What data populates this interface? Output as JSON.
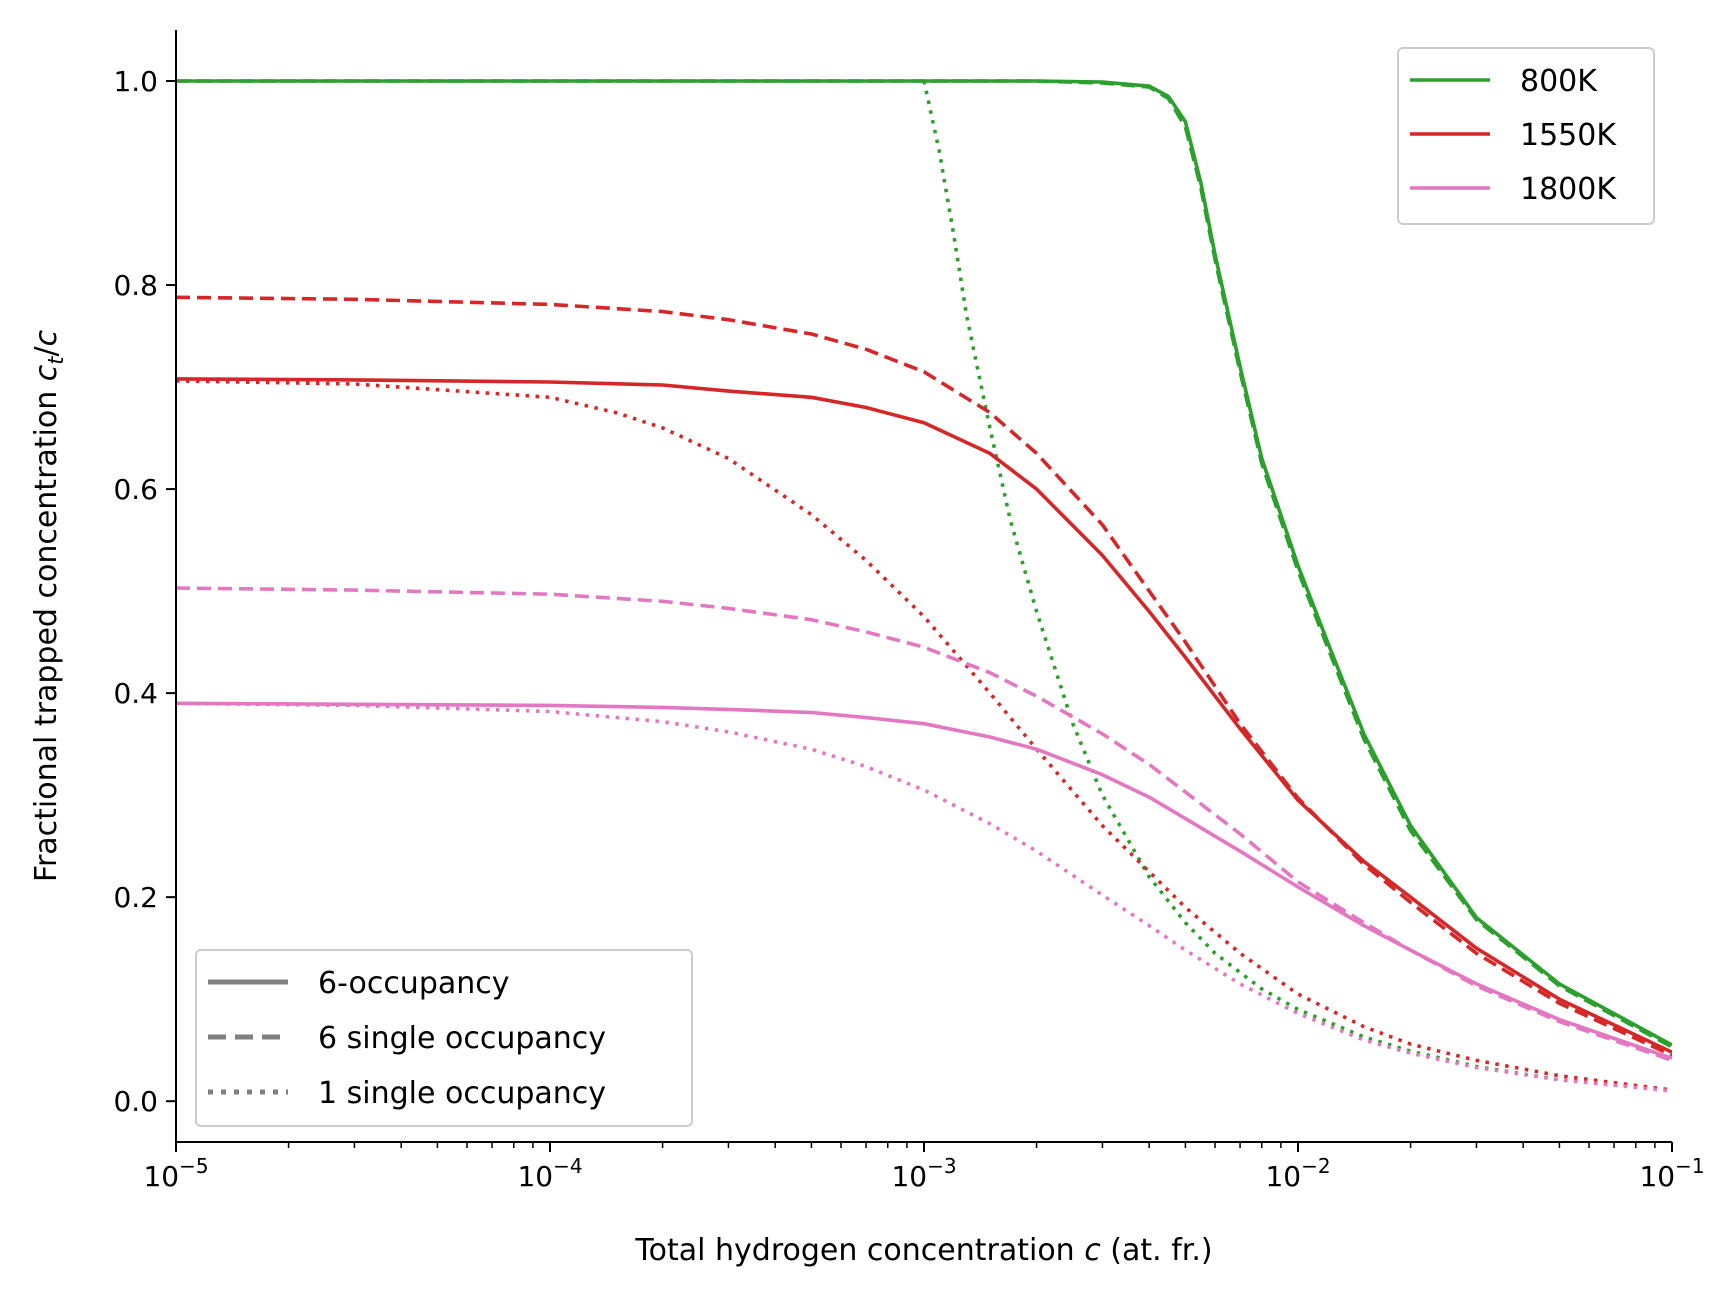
{
  "chart_data": {
    "type": "line",
    "x_scale": "log",
    "xlim": [
      1e-05,
      0.1
    ],
    "ylim": [
      -0.04,
      1.05
    ],
    "xlabel": {
      "prefix": "Total hydrogen concentration ",
      "var": "c",
      "suffix": " (at. fr.)"
    },
    "ylabel": {
      "prefix": "Fractional trapped concentration ",
      "var": "c",
      "sub": "t",
      "suffix": "/",
      "var2": "c"
    },
    "x_ticks": [
      {
        "value": 1e-05,
        "base": "10",
        "exp": "−5"
      },
      {
        "value": 0.0001,
        "base": "10",
        "exp": "−4"
      },
      {
        "value": 0.001,
        "base": "10",
        "exp": "−3"
      },
      {
        "value": 0.01,
        "base": "10",
        "exp": "−2"
      },
      {
        "value": 0.1,
        "base": "10",
        "exp": "−1"
      }
    ],
    "y_ticks": [
      {
        "value": 0.0,
        "label": "0.0"
      },
      {
        "value": 0.2,
        "label": "0.2"
      },
      {
        "value": 0.4,
        "label": "0.4"
      },
      {
        "value": 0.6,
        "label": "0.6"
      },
      {
        "value": 0.8,
        "label": "0.8"
      },
      {
        "value": 1.0,
        "label": "1.0"
      }
    ],
    "grid": false,
    "legend_temperature": {
      "position": "top-right",
      "entries": [
        {
          "label": "800K",
          "color": "#2ca02c"
        },
        {
          "label": "1550K",
          "color": "#d62728"
        },
        {
          "label": "1800K",
          "color": "#e377c2"
        }
      ]
    },
    "legend_style": {
      "position": "bottom-left",
      "color": "#808080",
      "entries": [
        {
          "label": "6-occupancy",
          "dash": "solid"
        },
        {
          "label": "6 single occupancy",
          "dash": "dashed"
        },
        {
          "label": "1 single occupancy",
          "dash": "dotted"
        }
      ]
    },
    "series": [
      {
        "name": "800K 6-occupancy",
        "color": "#2ca02c",
        "dash": "solid",
        "x": [
          1e-05,
          0.0001,
          0.001,
          0.002,
          0.003,
          0.004,
          0.0045,
          0.005,
          0.0055,
          0.006,
          0.007,
          0.008,
          0.01,
          0.012,
          0.015,
          0.02,
          0.03,
          0.05,
          0.1
        ],
        "y": [
          1.0,
          1.0,
          1.0,
          1.0,
          0.999,
          0.995,
          0.985,
          0.96,
          0.9,
          0.83,
          0.72,
          0.63,
          0.525,
          0.45,
          0.36,
          0.27,
          0.18,
          0.115,
          0.055
        ]
      },
      {
        "name": "800K 6 single occupancy",
        "color": "#2ca02c",
        "dash": "dashed",
        "x": [
          1e-05,
          0.0001,
          0.001,
          0.002,
          0.003,
          0.004,
          0.0045,
          0.005,
          0.0055,
          0.006,
          0.007,
          0.008,
          0.01,
          0.012,
          0.015,
          0.02,
          0.03,
          0.05,
          0.1
        ],
        "y": [
          1.0,
          1.0,
          1.0,
          1.0,
          0.998,
          0.994,
          0.983,
          0.955,
          0.895,
          0.825,
          0.715,
          0.625,
          0.52,
          0.445,
          0.355,
          0.265,
          0.178,
          0.113,
          0.053
        ]
      },
      {
        "name": "800K 1 single occupancy",
        "color": "#2ca02c",
        "dash": "dotted",
        "x": [
          0.001,
          0.0011,
          0.0012,
          0.0013,
          0.0015,
          0.0017,
          0.002,
          0.0025,
          0.003,
          0.004,
          0.005,
          0.006,
          0.008,
          0.01,
          0.015,
          0.02,
          0.03,
          0.05,
          0.1
        ],
        "y": [
          1.0,
          0.93,
          0.85,
          0.77,
          0.66,
          0.57,
          0.48,
          0.37,
          0.3,
          0.22,
          0.175,
          0.145,
          0.11,
          0.09,
          0.063,
          0.049,
          0.034,
          0.021,
          0.011
        ]
      },
      {
        "name": "1550K 6-occupancy",
        "color": "#d62728",
        "dash": "solid",
        "x": [
          1e-05,
          3e-05,
          0.0001,
          0.0002,
          0.0003,
          0.0005,
          0.0007,
          0.001,
          0.0015,
          0.002,
          0.003,
          0.004,
          0.005,
          0.007,
          0.01,
          0.015,
          0.02,
          0.03,
          0.05,
          0.1
        ],
        "y": [
          0.708,
          0.707,
          0.705,
          0.702,
          0.696,
          0.69,
          0.68,
          0.665,
          0.635,
          0.6,
          0.535,
          0.48,
          0.435,
          0.365,
          0.295,
          0.235,
          0.2,
          0.15,
          0.1,
          0.048
        ]
      },
      {
        "name": "1550K 6 single occupancy",
        "color": "#d62728",
        "dash": "dashed",
        "x": [
          1e-05,
          3e-05,
          0.0001,
          0.0002,
          0.0003,
          0.0005,
          0.0007,
          0.001,
          0.0015,
          0.002,
          0.003,
          0.004,
          0.005,
          0.007,
          0.01,
          0.015,
          0.02,
          0.03,
          0.05,
          0.1
        ],
        "y": [
          0.788,
          0.786,
          0.781,
          0.774,
          0.766,
          0.752,
          0.737,
          0.715,
          0.675,
          0.635,
          0.565,
          0.5,
          0.45,
          0.37,
          0.297,
          0.232,
          0.195,
          0.145,
          0.096,
          0.045
        ]
      },
      {
        "name": "1550K 1 single occupancy",
        "color": "#d62728",
        "dash": "dotted",
        "x": [
          1e-05,
          3e-05,
          0.0001,
          0.00015,
          0.0002,
          0.0003,
          0.0005,
          0.0007,
          0.001,
          0.0015,
          0.002,
          0.003,
          0.004,
          0.005,
          0.007,
          0.01,
          0.015,
          0.02,
          0.03,
          0.05,
          0.1
        ],
        "y": [
          0.706,
          0.703,
          0.69,
          0.675,
          0.66,
          0.63,
          0.575,
          0.53,
          0.475,
          0.4,
          0.345,
          0.27,
          0.225,
          0.19,
          0.145,
          0.105,
          0.073,
          0.056,
          0.04,
          0.025,
          0.011
        ]
      },
      {
        "name": "1800K 6-occupancy",
        "color": "#e377c2",
        "dash": "solid",
        "x": [
          1e-05,
          3e-05,
          0.0001,
          0.0002,
          0.0003,
          0.0005,
          0.0007,
          0.001,
          0.0015,
          0.002,
          0.003,
          0.004,
          0.005,
          0.007,
          0.01,
          0.015,
          0.02,
          0.03,
          0.05,
          0.1
        ],
        "y": [
          0.39,
          0.389,
          0.388,
          0.386,
          0.384,
          0.381,
          0.376,
          0.37,
          0.357,
          0.345,
          0.32,
          0.298,
          0.277,
          0.245,
          0.21,
          0.172,
          0.148,
          0.115,
          0.08,
          0.042
        ]
      },
      {
        "name": "1800K 6 single occupancy",
        "color": "#e377c2",
        "dash": "dashed",
        "x": [
          1e-05,
          3e-05,
          0.0001,
          0.0002,
          0.0003,
          0.0005,
          0.0007,
          0.001,
          0.0015,
          0.002,
          0.003,
          0.004,
          0.005,
          0.007,
          0.01,
          0.015,
          0.02,
          0.03,
          0.05,
          0.1
        ],
        "y": [
          0.503,
          0.501,
          0.497,
          0.49,
          0.483,
          0.472,
          0.46,
          0.445,
          0.42,
          0.397,
          0.36,
          0.33,
          0.303,
          0.262,
          0.215,
          0.175,
          0.148,
          0.113,
          0.078,
          0.04
        ]
      },
      {
        "name": "1800K 1 single occupancy",
        "color": "#e377c2",
        "dash": "dotted",
        "x": [
          1e-05,
          3e-05,
          0.0001,
          0.0002,
          0.0003,
          0.0005,
          0.0007,
          0.001,
          0.0015,
          0.002,
          0.003,
          0.004,
          0.005,
          0.007,
          0.01,
          0.015,
          0.02,
          0.03,
          0.05,
          0.1
        ],
        "y": [
          0.39,
          0.388,
          0.382,
          0.372,
          0.362,
          0.345,
          0.328,
          0.305,
          0.272,
          0.245,
          0.202,
          0.172,
          0.148,
          0.115,
          0.086,
          0.06,
          0.047,
          0.033,
          0.021,
          0.01
        ]
      }
    ]
  }
}
